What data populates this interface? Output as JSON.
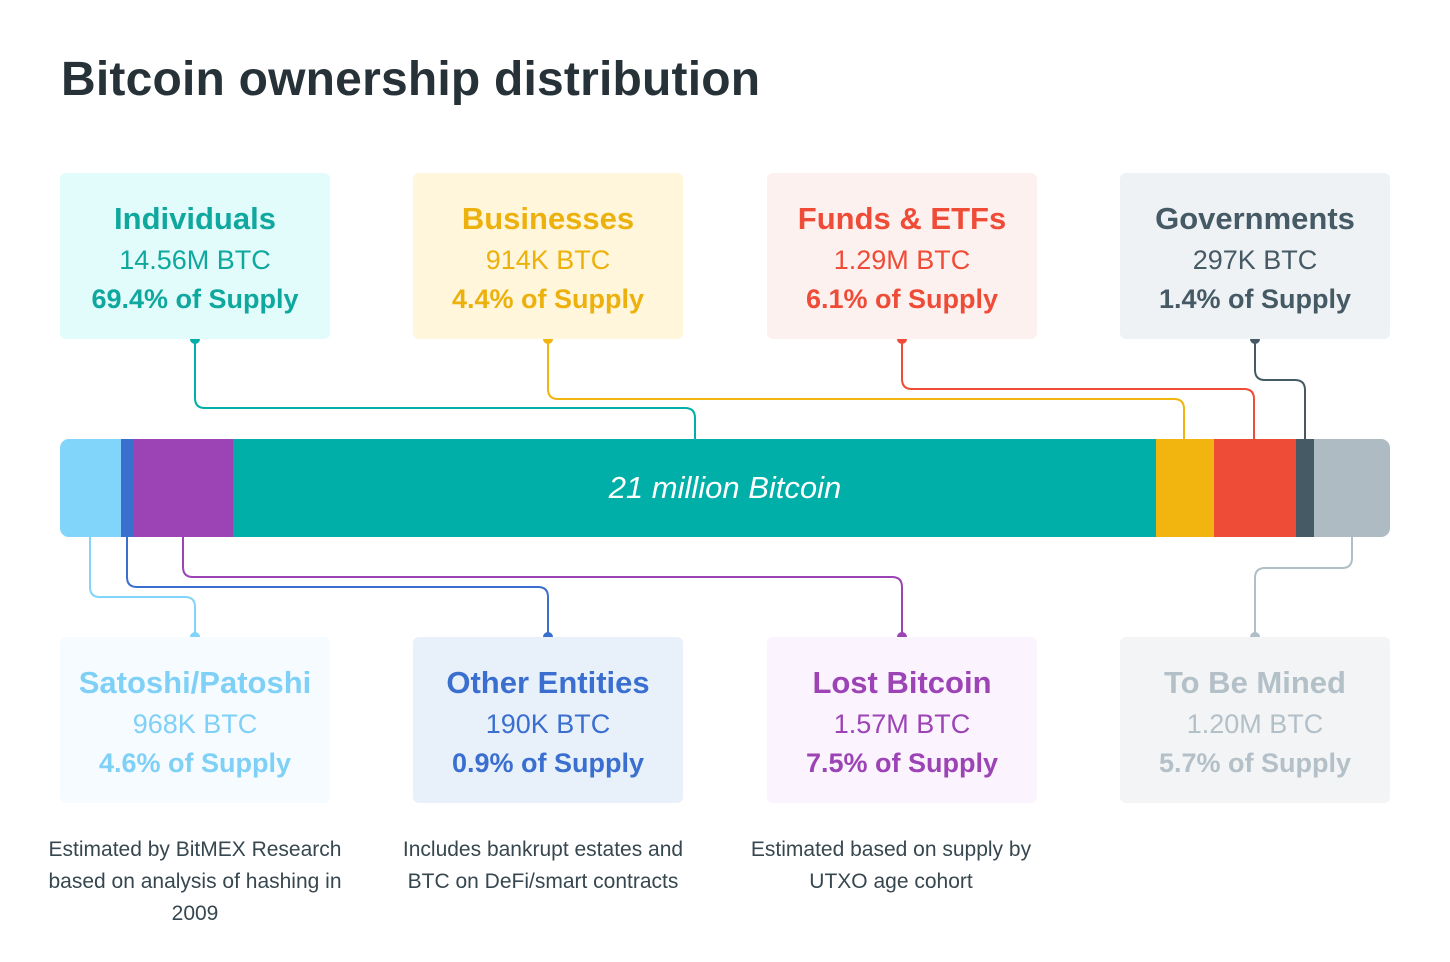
{
  "title": "Bitcoin ownership distribution",
  "chart_data": {
    "type": "bar",
    "orientation": "horizontal-stacked",
    "title": "Bitcoin ownership distribution",
    "bar_label": "21 million Bitcoin",
    "unit": "% of Supply",
    "total_btc": "21 million",
    "segments": [
      {
        "key": "satoshi",
        "name": "Satoshi/Patoshi",
        "btc": "968K BTC",
        "value": 4.6,
        "pct_label": "4.6% of Supply",
        "color": "#81d4fa",
        "card_bg": "#f6fbff"
      },
      {
        "key": "other",
        "name": "Other Entities",
        "btc": "190K BTC",
        "value": 0.9,
        "pct_label": "0.9% of Supply",
        "color": "#3a6fd0",
        "card_bg": "#e8f1fa"
      },
      {
        "key": "lost",
        "name": "Lost Bitcoin",
        "btc": "1.57M BTC",
        "value": 7.5,
        "pct_label": "7.5% of Supply",
        "color": "#9c44b6",
        "card_bg": "#fbf3fd"
      },
      {
        "key": "individuals",
        "name": "Individuals",
        "btc": "14.56M BTC",
        "value": 69.4,
        "pct_label": "69.4% of Supply",
        "color": "#00b0a8",
        "card_bg": "#e2fbfb"
      },
      {
        "key": "businesses",
        "name": "Businesses",
        "btc": "914K BTC",
        "value": 4.4,
        "pct_label": "4.4% of Supply",
        "color": "#f2b50f",
        "card_bg": "#fff6dc"
      },
      {
        "key": "funds",
        "name": "Funds & ETFs",
        "btc": "1.29M BTC",
        "value": 6.1,
        "pct_label": "6.1% of Supply",
        "color": "#ef4c38",
        "card_bg": "#fdf1ef"
      },
      {
        "key": "governments",
        "name": "Governments",
        "btc": "297K BTC",
        "value": 1.4,
        "pct_label": "1.4% of Supply",
        "color": "#455a64",
        "card_bg": "#eef2f5"
      },
      {
        "key": "tobemined",
        "name": "To Be Mined",
        "btc": "1.20M BTC",
        "value": 5.7,
        "pct_label": "5.7% of Supply",
        "color": "#aebbc2",
        "card_bg": "#f2f4f6"
      }
    ],
    "top_row": [
      "individuals",
      "businesses",
      "funds",
      "governments"
    ],
    "bottom_row": [
      "satoshi",
      "other",
      "lost",
      "tobemined"
    ],
    "notes": {
      "satoshi": "Estimated by BitMEX Research based on analysis of hashing in 2009",
      "other": "Includes bankrupt estates and BTC on DeFi/smart contracts",
      "lost": "Estimated based on supply by UTXO age cohort"
    },
    "text_colors": {
      "individuals": "#0fa89e",
      "businesses": "#ecb10c",
      "funds": "#ef4c38",
      "governments": "#455a64",
      "satoshi": "#7fd0f7",
      "other": "#3a6fd0",
      "lost": "#9c44b6",
      "tobemined": "#b4c0c7"
    },
    "connector_colors": {
      "individuals": "#00b0a8",
      "businesses": "#f2b50f",
      "funds": "#ef4c38",
      "governments": "#455a64",
      "satoshi": "#81d4fa",
      "other": "#3a6fd0",
      "lost": "#9c44b6",
      "tobemined": "#b0bec5"
    }
  }
}
